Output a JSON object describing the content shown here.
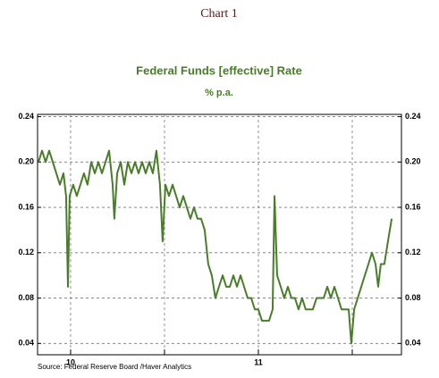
{
  "chart_data": {
    "type": "line",
    "header": "Chart 1",
    "title": "Federal Funds [effective] Rate",
    "subtitle": "% p.a.",
    "source": "Source: Federal Reserve Board /Haver Analytics",
    "x": [
      2009.829,
      2009.848,
      2009.867,
      2009.886,
      2009.905,
      2009.924,
      2009.943,
      2009.962,
      2009.976,
      2009.986,
      2009.995,
      2010.014,
      2010.033,
      2010.052,
      2010.071,
      2010.09,
      2010.11,
      2010.129,
      2010.148,
      2010.167,
      2010.186,
      2010.205,
      2010.224,
      2010.233,
      2010.248,
      2010.267,
      2010.286,
      2010.305,
      2010.324,
      2010.343,
      2010.362,
      2010.381,
      2010.4,
      2010.419,
      2010.438,
      2010.457,
      2010.476,
      2010.49,
      2010.505,
      2010.524,
      2010.543,
      2010.562,
      2010.581,
      2010.6,
      2010.619,
      2010.638,
      2010.657,
      2010.676,
      2010.695,
      2010.714,
      2010.733,
      2010.752,
      2010.771,
      2010.79,
      2010.81,
      2010.829,
      2010.848,
      2010.867,
      2010.886,
      2010.905,
      2010.924,
      2010.943,
      2010.962,
      2010.981,
      2011.0,
      2011.019,
      2011.038,
      2011.057,
      2011.076,
      2011.086,
      2011.1,
      2011.119,
      2011.138,
      2011.157,
      2011.176,
      2011.195,
      2011.214,
      2011.233,
      2011.252,
      2011.271,
      2011.29,
      2011.31,
      2011.329,
      2011.348,
      2011.367,
      2011.386,
      2011.405,
      2011.424,
      2011.443,
      2011.462,
      2011.481,
      2011.495,
      2011.51,
      2011.529,
      2011.548,
      2011.567,
      2011.586,
      2011.605,
      2011.624,
      2011.638,
      2011.652,
      2011.671,
      2011.69,
      2011.71
    ],
    "series": [
      {
        "name": "Federal Funds [effective] Rate",
        "color": "#4a7d2a",
        "values": [
          0.2,
          0.21,
          0.2,
          0.21,
          0.2,
          0.19,
          0.18,
          0.19,
          0.17,
          0.09,
          0.17,
          0.18,
          0.17,
          0.18,
          0.19,
          0.18,
          0.2,
          0.19,
          0.2,
          0.19,
          0.2,
          0.21,
          0.18,
          0.15,
          0.19,
          0.2,
          0.18,
          0.2,
          0.19,
          0.2,
          0.19,
          0.2,
          0.19,
          0.2,
          0.19,
          0.21,
          0.18,
          0.13,
          0.18,
          0.17,
          0.18,
          0.17,
          0.16,
          0.17,
          0.16,
          0.15,
          0.16,
          0.15,
          0.15,
          0.14,
          0.11,
          0.1,
          0.08,
          0.09,
          0.1,
          0.09,
          0.09,
          0.1,
          0.09,
          0.1,
          0.09,
          0.08,
          0.08,
          0.07,
          0.07,
          0.06,
          0.06,
          0.06,
          0.07,
          0.17,
          0.1,
          0.09,
          0.08,
          0.09,
          0.08,
          0.08,
          0.07,
          0.08,
          0.07,
          0.07,
          0.07,
          0.08,
          0.08,
          0.08,
          0.09,
          0.08,
          0.09,
          0.08,
          0.07,
          0.07,
          0.07,
          0.04,
          0.07,
          0.08,
          0.09,
          0.1,
          0.11,
          0.12,
          0.11,
          0.09,
          0.11,
          0.11,
          0.13,
          0.15
        ]
      }
    ],
    "xlim": [
      2009.824,
      2011.762
    ],
    "xticks": [
      {
        "value": 2010,
        "label": "10"
      },
      {
        "value": 2011,
        "label": "11"
      }
    ],
    "xgrid": [
      2010,
      2010.5,
      2011,
      2011.5
    ],
    "ylim": [
      0.03,
      0.242
    ],
    "yticks": [
      0.04,
      0.08,
      0.12,
      0.16,
      {
        "value": 0.2,
        "label": "0.20"
      },
      0.24
    ],
    "grid": true
  }
}
